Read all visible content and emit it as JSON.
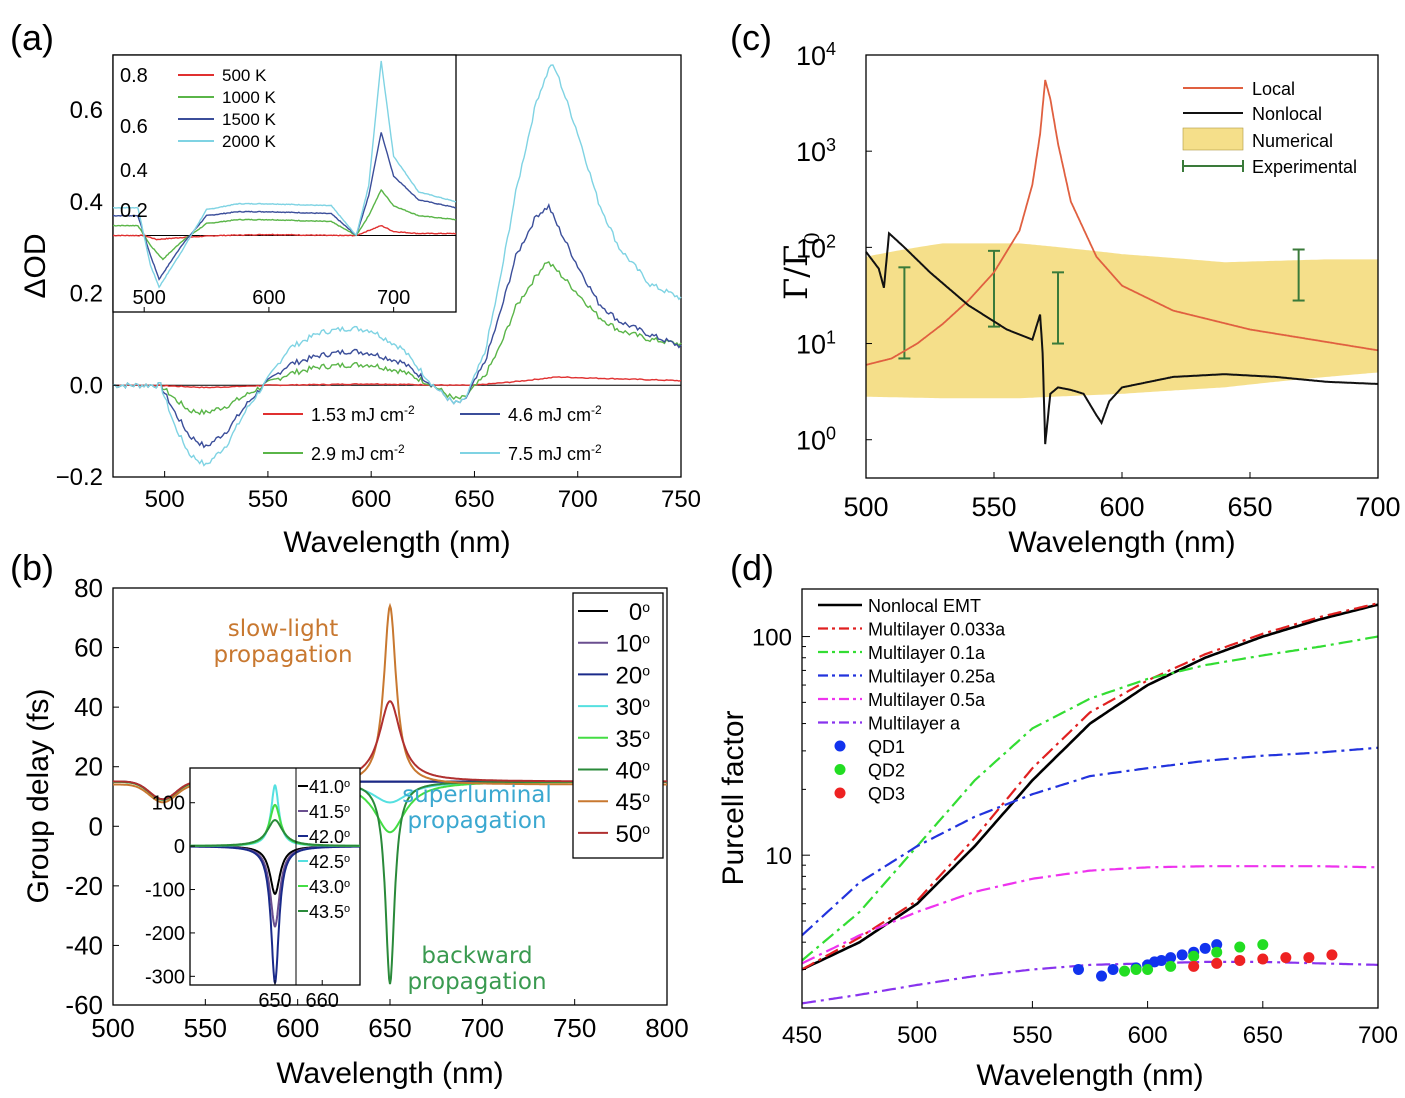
{
  "chart_data": [
    {
      "panel": "(a)",
      "type": "line",
      "xlabel": "Wavelength (nm)",
      "ylabel": "ΔOD",
      "xlim": [
        475,
        750
      ],
      "ylim": [
        -0.2,
        0.72
      ],
      "xticks": [
        "500",
        "550",
        "600",
        "650",
        "700",
        "750"
      ],
      "yticks": [
        "-0.2",
        "0.0",
        "0.2",
        "0.4",
        "0.6"
      ],
      "grid": false,
      "legend": "bottom",
      "series": [
        {
          "name": "1.53 mJ cm",
          "sup": "-2",
          "color": "#e03030",
          "x": [
            475,
            495,
            510,
            520,
            540,
            550,
            600,
            640,
            650,
            670,
            690,
            720,
            750
          ],
          "y": [
            0,
            0,
            -0.003,
            -0.005,
            -0.002,
            0,
            0.003,
            0,
            0,
            0.008,
            0.018,
            0.014,
            0.01
          ]
        },
        {
          "name": "2.9 mJ cm",
          "sup": "-2",
          "color": "#5ab548",
          "x": [
            475,
            498,
            505,
            512,
            520,
            530,
            540,
            548,
            560,
            575,
            590,
            600,
            615,
            630,
            640,
            645,
            655,
            662,
            670,
            680,
            685,
            690,
            700,
            710,
            720,
            735,
            750
          ],
          "y": [
            0,
            0,
            -0.03,
            -0.055,
            -0.06,
            -0.045,
            -0.02,
            0,
            0.025,
            0.04,
            0.045,
            0.045,
            0.03,
            0.0,
            -0.03,
            -0.028,
            0.02,
            0.08,
            0.17,
            0.24,
            0.27,
            0.25,
            0.2,
            0.15,
            0.12,
            0.1,
            0.09
          ]
        },
        {
          "name": "4.6 mJ cm",
          "sup": "-2",
          "color": "#3b4e9a",
          "x": [
            475,
            498,
            505,
            512,
            520,
            530,
            540,
            548,
            560,
            575,
            590,
            600,
            615,
            630,
            640,
            645,
            655,
            662,
            670,
            680,
            686,
            690,
            700,
            710,
            720,
            735,
            750
          ],
          "y": [
            0,
            0,
            -0.06,
            -0.11,
            -0.135,
            -0.1,
            -0.04,
            0,
            0.045,
            0.065,
            0.075,
            0.07,
            0.05,
            0.0,
            -0.04,
            -0.035,
            0.05,
            0.15,
            0.28,
            0.37,
            0.39,
            0.35,
            0.26,
            0.18,
            0.14,
            0.11,
            0.085
          ]
        },
        {
          "name": "7.5 mJ cm",
          "sup": "-2",
          "color": "#7fd3e3",
          "x": [
            475,
            498,
            505,
            512,
            520,
            530,
            540,
            548,
            560,
            575,
            590,
            600,
            615,
            630,
            640,
            645,
            655,
            662,
            670,
            680,
            687,
            690,
            700,
            710,
            720,
            735,
            750
          ],
          "y": [
            0,
            0,
            -0.09,
            -0.15,
            -0.175,
            -0.13,
            -0.05,
            0,
            0.08,
            0.115,
            0.125,
            0.12,
            0.08,
            0.0,
            -0.04,
            -0.035,
            0.07,
            0.22,
            0.42,
            0.62,
            0.7,
            0.68,
            0.55,
            0.4,
            0.3,
            0.22,
            0.19
          ]
        }
      ],
      "inset": {
        "xlim": [
          475,
          750
        ],
        "ylim": [
          -0.3,
          0.9
        ],
        "xticks": [
          "500",
          "600",
          "700"
        ],
        "yticks": [
          "0.2",
          "0.4",
          "0.6",
          "0.8"
        ],
        "legend": "top-left",
        "series": [
          {
            "name": "500 K",
            "color": "#e03030",
            "x": [
              475,
              500,
              510,
              530,
              560,
              600,
              650,
              670,
              690,
              700,
              720,
              750
            ],
            "y": [
              0,
              0,
              -0.02,
              -0.01,
              0,
              0.005,
              0,
              0,
              0.05,
              0.02,
              0.01,
              0.01
            ]
          },
          {
            "name": "1000 K",
            "color": "#5ab548",
            "x": [
              475,
              495,
              505,
              515,
              530,
              550,
              575,
              600,
              650,
              670,
              680,
              690,
              700,
              720,
              750
            ],
            "y": [
              0.05,
              0.05,
              -0.05,
              -0.12,
              -0.03,
              0.06,
              0.08,
              0.08,
              0.07,
              0.0,
              0.1,
              0.23,
              0.15,
              0.1,
              0.08
            ]
          },
          {
            "name": "1500 K",
            "color": "#3b4e9a",
            "x": [
              475,
              495,
              505,
              512,
              530,
              550,
              575,
              600,
              650,
              670,
              680,
              690,
              700,
              720,
              750
            ],
            "y": [
              0.1,
              0.1,
              -0.1,
              -0.22,
              -0.05,
              0.1,
              0.12,
              0.12,
              0.11,
              0.0,
              0.2,
              0.52,
              0.3,
              0.18,
              0.14
            ]
          },
          {
            "name": "2000 K",
            "color": "#7fd3e3",
            "x": [
              475,
              495,
              505,
              512,
              530,
              550,
              575,
              600,
              650,
              670,
              680,
              690,
              700,
              720,
              750
            ],
            "y": [
              0.14,
              0.14,
              -0.15,
              -0.26,
              -0.08,
              0.13,
              0.16,
              0.16,
              0.15,
              0.0,
              0.25,
              0.88,
              0.4,
              0.22,
              0.17
            ]
          }
        ]
      }
    },
    {
      "panel": "(b)",
      "type": "line",
      "xlabel": "Wavelength (nm)",
      "ylabel": "Group delay (fs)",
      "xlim": [
        500,
        800
      ],
      "ylim": [
        -60,
        80
      ],
      "xticks": [
        "500",
        "550",
        "600",
        "650",
        "700",
        "750",
        "800"
      ],
      "yticks": [
        "-60",
        "-40",
        "-20",
        "0",
        "20",
        "40",
        "60",
        "80"
      ],
      "grid": false,
      "legend": "top-right",
      "annotations": [
        {
          "text": "slow-light",
          "color": "#c87830"
        },
        {
          "text": "propagation",
          "color": "#c87830"
        },
        {
          "text": "superluminal",
          "color": "#3ba8d0"
        },
        {
          "text": "propagation",
          "color": "#3ba8d0"
        },
        {
          "text": "backward",
          "color": "#3a9a50"
        },
        {
          "text": "propagation",
          "color": "#3a9a50"
        }
      ],
      "series": [
        {
          "name": "0",
          "color": "#000000",
          "peak": 0,
          "width": 10,
          "base": 15
        },
        {
          "name": "10",
          "color": "#6a4f8f",
          "peak": 0,
          "width": 10,
          "base": 15
        },
        {
          "name": "20",
          "color": "#1a2a8a",
          "peak": 0,
          "width": 10,
          "base": 15
        },
        {
          "name": "30",
          "color": "#55e0e0",
          "peak": -7,
          "width": 12,
          "base": 15
        },
        {
          "name": "35",
          "color": "#44dd44",
          "peak": -17,
          "width": 10,
          "base": 15
        },
        {
          "name": "40",
          "color": "#2a8a3a",
          "peak": -68,
          "width": 3,
          "base": 15
        },
        {
          "name": "45",
          "color": "#c87830",
          "peak": 60,
          "width": 4,
          "base": 14
        },
        {
          "name": "50",
          "color": "#b03030",
          "peak": 27,
          "width": 7,
          "base": 15
        }
      ],
      "inset": {
        "xlim": [
          632,
          668
        ],
        "ylim": [
          -320,
          180
        ],
        "xticks": [
          "650",
          "660"
        ],
        "yticks": [
          "-300",
          "-200",
          "-100",
          "0",
          "100"
        ],
        "legend": "right",
        "series": [
          {
            "name": "41.0",
            "color": "#000000",
            "peak": -110,
            "width": 1.3
          },
          {
            "name": "41.5",
            "color": "#6a4f8f",
            "peak": -185,
            "width": 1.2
          },
          {
            "name": "42.0",
            "color": "#1a2a8a",
            "peak": -315,
            "width": 1.0
          },
          {
            "name": "42.5",
            "color": "#55e0e0",
            "peak": 140,
            "width": 1.0
          },
          {
            "name": "43.0",
            "color": "#44dd44",
            "peak": 95,
            "width": 1.4
          },
          {
            "name": "43.5",
            "color": "#2a8a3a",
            "peak": 60,
            "width": 2.0
          }
        ]
      }
    },
    {
      "panel": "(c)",
      "type": "line",
      "xlabel": "Wavelength (nm)",
      "ylabel": "Γ/Γ0",
      "xlim": [
        500,
        700
      ],
      "ylim": [
        0.4,
        10000
      ],
      "yscale": "log",
      "xticks": [
        "500",
        "550",
        "600",
        "650",
        "700"
      ],
      "yticks": [
        "10^0",
        "10^1",
        "10^2",
        "10^3",
        "10^4"
      ],
      "grid": false,
      "legend": "top-right",
      "series": [
        {
          "name": "Local",
          "color": "#e06040",
          "x": [
            500,
            510,
            520,
            530,
            540,
            550,
            560,
            565,
            568,
            570,
            572,
            575,
            580,
            590,
            600,
            620,
            650,
            700
          ],
          "y": [
            6,
            7,
            10,
            16,
            28,
            55,
            150,
            450,
            1500,
            5500,
            3500,
            1200,
            300,
            80,
            40,
            22,
            14,
            8.5
          ]
        },
        {
          "name": "Nonlocal",
          "color": "#111111",
          "x": [
            500,
            505,
            507,
            509,
            515,
            525,
            540,
            555,
            565,
            568,
            569,
            570,
            572,
            575,
            580,
            585,
            590,
            592,
            595,
            600,
            620,
            640,
            660,
            680,
            700
          ],
          "y": [
            90,
            60,
            38,
            140,
            100,
            55,
            25,
            14,
            11,
            20,
            8,
            0.9,
            3,
            3.5,
            3.3,
            3.0,
            1.8,
            1.5,
            2.5,
            3.5,
            4.5,
            4.8,
            4.5,
            4.0,
            3.8
          ]
        },
        {
          "name": "Numerical",
          "color": "#f5df8a",
          "type": "band",
          "x": [
            500,
            530,
            560,
            600,
            640,
            680,
            700
          ],
          "y_low": [
            2.8,
            2.7,
            2.7,
            3.0,
            3.5,
            4.5,
            5
          ],
          "y_high": [
            80,
            110,
            110,
            85,
            70,
            75,
            75
          ]
        },
        {
          "name": "Experimental",
          "color": "#3a7a3a",
          "type": "errorbar",
          "x": [
            515,
            550,
            575,
            669
          ],
          "y_low": [
            7,
            15,
            10,
            28
          ],
          "y_high": [
            62,
            92,
            55,
            95
          ]
        }
      ]
    },
    {
      "panel": "(d)",
      "type": "line",
      "xlabel": "Wavelength (nm)",
      "ylabel": "Purcell factor",
      "xlim": [
        450,
        700
      ],
      "ylim": [
        2.0,
        165
      ],
      "yscale": "log",
      "xticks": [
        "450",
        "500",
        "550",
        "600",
        "650",
        "700"
      ],
      "yticks": [
        "10",
        "100"
      ],
      "grid": false,
      "legend": "top-left",
      "series": [
        {
          "name": "Nonlocal EMT",
          "color": "#000000",
          "dash": "solid",
          "x": [
            450,
            475,
            500,
            525,
            550,
            575,
            600,
            625,
            650,
            675,
            700
          ],
          "y": [
            3.0,
            4.0,
            6.0,
            11,
            22,
            40,
            60,
            80,
            100,
            120,
            140
          ]
        },
        {
          "name": "Multilayer 0.033a",
          "color": "#e02020",
          "dash": "dashdot",
          "x": [
            450,
            475,
            500,
            525,
            550,
            575,
            600,
            625,
            650,
            675,
            700
          ],
          "y": [
            3.0,
            4.2,
            6.2,
            12,
            25,
            45,
            63,
            83,
            103,
            123,
            142
          ]
        },
        {
          "name": "Multilayer 0.1a",
          "color": "#33dd33",
          "dash": "dashdot",
          "x": [
            450,
            475,
            500,
            525,
            550,
            575,
            600,
            625,
            650,
            675,
            700
          ],
          "y": [
            3.3,
            5.5,
            11,
            22,
            38,
            52,
            64,
            74,
            82,
            90,
            100
          ]
        },
        {
          "name": "Multilayer 0.25a",
          "color": "#2233dd",
          "dash": "dashdot",
          "x": [
            450,
            475,
            500,
            525,
            550,
            575,
            600,
            625,
            650,
            675,
            700
          ],
          "y": [
            4.3,
            7.5,
            11,
            15,
            19,
            23,
            25,
            27,
            28.5,
            29.5,
            31
          ]
        },
        {
          "name": "Multilayer 0.5a",
          "color": "#ee33ee",
          "dash": "dashdot",
          "x": [
            450,
            475,
            500,
            525,
            550,
            575,
            600,
            625,
            650,
            675,
            700
          ],
          "y": [
            3.2,
            4.3,
            5.5,
            6.8,
            7.8,
            8.5,
            8.8,
            8.9,
            8.9,
            8.9,
            8.8
          ]
        },
        {
          "name": "Multilayer a",
          "color": "#8833ee",
          "dash": "dashdot",
          "x": [
            450,
            475,
            500,
            525,
            550,
            575,
            600,
            625,
            650,
            675,
            700
          ],
          "y": [
            2.1,
            2.3,
            2.55,
            2.8,
            3.0,
            3.15,
            3.2,
            3.25,
            3.25,
            3.2,
            3.15
          ]
        },
        {
          "name": "QD1",
          "color": "#1133ee",
          "type": "scatter",
          "x": [
            570,
            580,
            585,
            595,
            600,
            603,
            606,
            610,
            615,
            620,
            625,
            630
          ],
          "y": [
            3.0,
            2.8,
            3.0,
            3.05,
            3.15,
            3.25,
            3.3,
            3.4,
            3.5,
            3.6,
            3.75,
            3.9
          ]
        },
        {
          "name": "QD2",
          "color": "#22dd22",
          "type": "scatter",
          "x": [
            590,
            595,
            600,
            610,
            620,
            630,
            640,
            650
          ],
          "y": [
            2.95,
            3.0,
            3.0,
            3.1,
            3.45,
            3.6,
            3.8,
            3.9
          ]
        },
        {
          "name": "QD3",
          "color": "#ee2222",
          "type": "scatter",
          "x": [
            620,
            630,
            640,
            650,
            660,
            670,
            680
          ],
          "y": [
            3.1,
            3.2,
            3.3,
            3.35,
            3.4,
            3.4,
            3.5
          ]
        }
      ]
    }
  ]
}
